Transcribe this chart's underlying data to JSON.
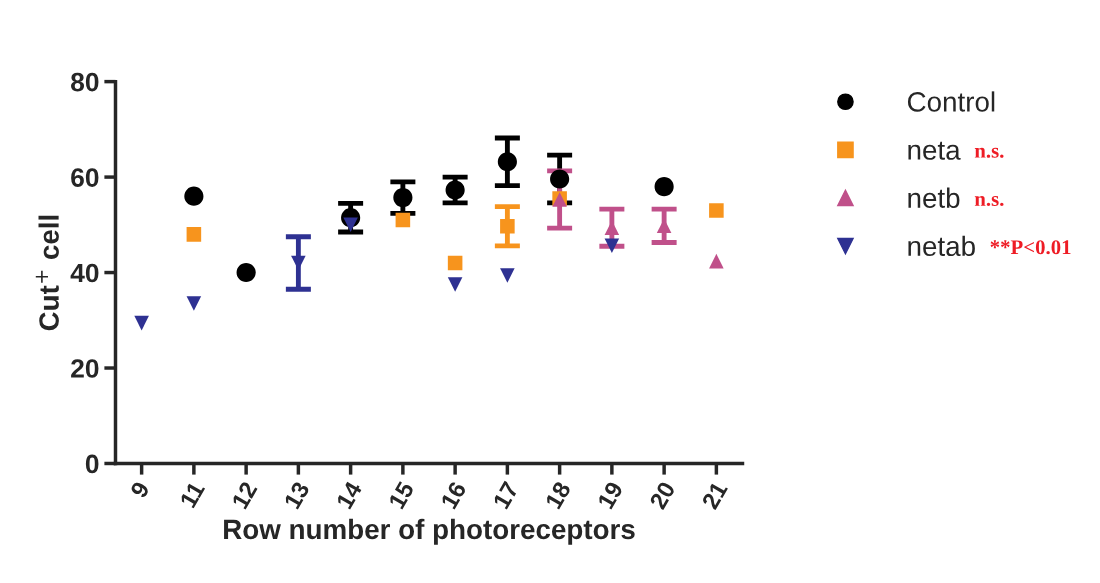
{
  "chart_data": {
    "type": "scatter",
    "xlabel": "Row number of photoreceptors",
    "ylabel": "Cut$^{+}$ cell",
    "categories": [
      "9",
      "11",
      "12",
      "13",
      "14",
      "15",
      "16",
      "17",
      "18",
      "19",
      "20",
      "21"
    ],
    "series": [
      {
        "name": "Control",
        "color": "#000000",
        "marker": "circle",
        "values": [
          null,
          56,
          40,
          null,
          51.5,
          55.7,
          57.3,
          63.2,
          59.6,
          null,
          58,
          null
        ],
        "errors": [
          null,
          null,
          null,
          null,
          3,
          3.3,
          2.7,
          5,
          5,
          null,
          null,
          null
        ]
      },
      {
        "name": "neta",
        "color": "#f7941d",
        "marker": "square",
        "values": [
          null,
          48,
          null,
          null,
          null,
          51,
          42,
          49.7,
          55.5,
          null,
          null,
          53
        ],
        "errors": [
          null,
          null,
          null,
          null,
          null,
          null,
          null,
          4.1,
          null,
          null,
          null,
          null
        ]
      },
      {
        "name": "netb",
        "color": "#c0508a",
        "marker": "triangle",
        "values": [
          null,
          null,
          null,
          null,
          null,
          null,
          null,
          null,
          55.3,
          49.4,
          49.8,
          42.4
        ],
        "errors": [
          null,
          null,
          null,
          null,
          null,
          null,
          null,
          null,
          6,
          3.9,
          3.5,
          null
        ]
      },
      {
        "name": "netab",
        "color": "#2e3192",
        "marker": "triangle_down",
        "values": [
          29.4,
          33.5,
          null,
          42,
          50,
          null,
          37.5,
          39.4,
          null,
          45.6,
          null,
          null
        ],
        "errors": [
          null,
          null,
          null,
          5.5,
          null,
          null,
          null,
          null,
          null,
          null,
          null,
          null
        ]
      }
    ],
    "annotations": [
      "n.s.",
      "n.s.",
      "**P<0.01"
    ],
    "ylim": [
      0,
      80
    ],
    "yticks": [
      0,
      20,
      40,
      60,
      80
    ],
    "grid": false,
    "legend": "right"
  }
}
